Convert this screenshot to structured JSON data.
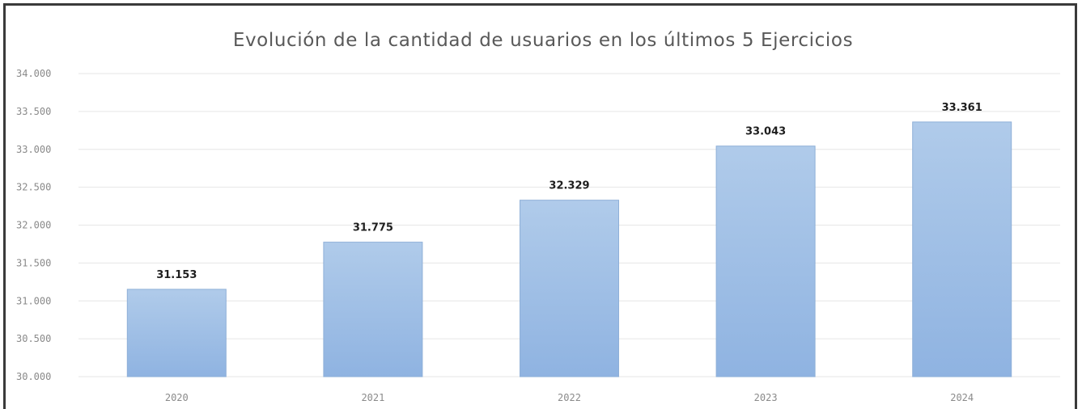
{
  "chart_data": {
    "type": "bar",
    "title": "Evolución de la cantidad de usuarios en los últimos 5 Ejercicios",
    "xlabel": "",
    "ylabel": "",
    "categories": [
      "2020",
      "2021",
      "2022",
      "2023",
      "2024"
    ],
    "values": [
      31153,
      31775,
      32329,
      33043,
      33361
    ],
    "value_labels": [
      "31.153",
      "31.775",
      "32.329",
      "33.043",
      "33.361"
    ],
    "ylim": [
      30000,
      34000
    ],
    "yticks": [
      30000,
      30500,
      31000,
      31500,
      32000,
      32500,
      33000,
      33500,
      34000
    ],
    "ytick_labels": [
      "30.000",
      "30.500",
      "31.000",
      "31.500",
      "32.000",
      "32.500",
      "33.000",
      "33.500",
      "34.000"
    ],
    "grid": true,
    "legend": "none",
    "bar_color_top": "#b0cbea",
    "bar_color_bottom": "#8fb3e1"
  }
}
